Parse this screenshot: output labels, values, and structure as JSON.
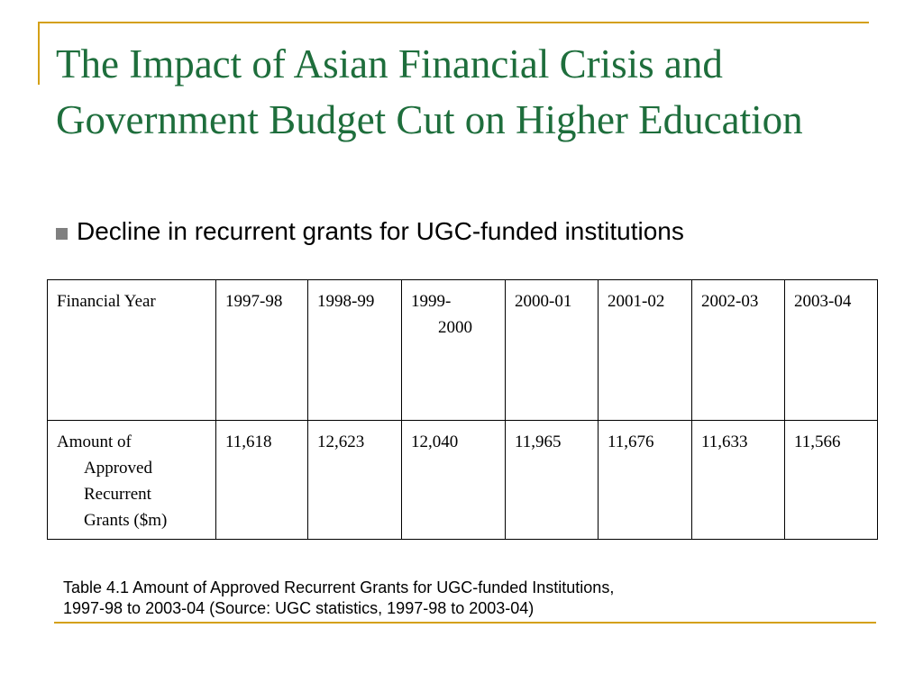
{
  "slide": {
    "title": "The Impact of Asian Financial Crisis and Government Budget Cut on Higher Education",
    "bullet": "Decline in recurrent grants for UGC-funded institutions",
    "caption_line1": "Table 4.1 Amount of Approved Recurrent Grants for UGC-funded Institutions,",
    "caption_line2": "1997-98 to 2003-04 (Source: UGC statistics, 1997-98 to 2003-04)"
  },
  "table": {
    "row_header_label": "Financial Year",
    "years": [
      "1997-98",
      "1998-99",
      "1999-",
      "2000-01",
      "2001-02",
      "2002-03",
      "2003-04"
    ],
    "year_1999_cont": "2000",
    "row_data_label_line1": "Amount of",
    "row_data_label_line2": "Approved",
    "row_data_label_line3": "Recurrent",
    "row_data_label_line4": "Grants ($m)",
    "values": [
      "11,618",
      "12,623",
      "12,040",
      "11,965",
      "11,676",
      "11,633",
      "11,566"
    ]
  },
  "colors": {
    "title": "#1e6e3c",
    "accent": "#d4a017",
    "bullet": "#808080"
  }
}
